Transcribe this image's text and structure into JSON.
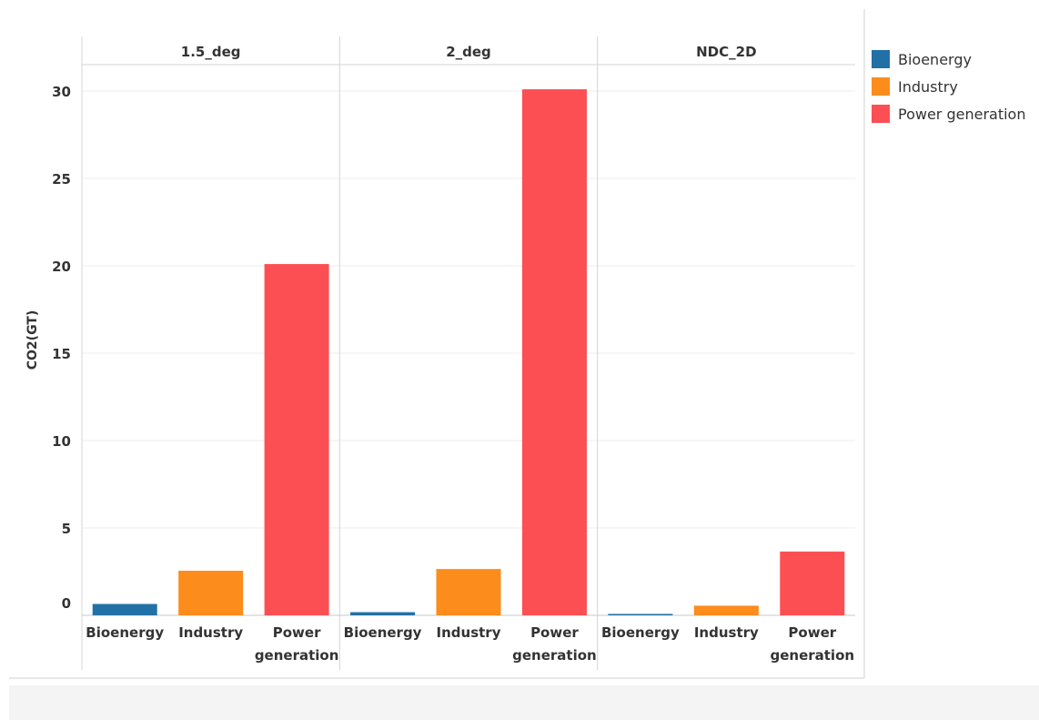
{
  "chart_data": {
    "type": "bar",
    "ylabel": "CO2(GT)",
    "xlabel": "",
    "ylim": [
      0,
      31.5
    ],
    "yticks": [
      0,
      5,
      10,
      15,
      20,
      25,
      30
    ],
    "grid": true,
    "legend_position": "right",
    "categories": [
      "Bioenergy",
      "Industry",
      "Power generation"
    ],
    "category_labels": [
      [
        "Bioenergy"
      ],
      [
        "Industry"
      ],
      [
        "Power",
        "generation"
      ]
    ],
    "colors": {
      "Bioenergy": "#2271a6",
      "Industry": "#fc8c1c",
      "Power generation": "#fc4f54"
    },
    "panels": [
      {
        "name": "1.5_deg",
        "values": [
          0.65,
          2.55,
          20.1
        ]
      },
      {
        "name": "2_deg",
        "values": [
          0.18,
          2.65,
          30.1
        ]
      },
      {
        "name": "NDC_2D",
        "values": [
          0.08,
          0.55,
          3.65
        ]
      }
    ]
  },
  "legend": {
    "items": [
      {
        "label": "Bioenergy",
        "color": "#2271a6"
      },
      {
        "label": "Industry",
        "color": "#fc8c1c"
      },
      {
        "label": "Power generation",
        "color": "#fc4f54"
      }
    ]
  }
}
